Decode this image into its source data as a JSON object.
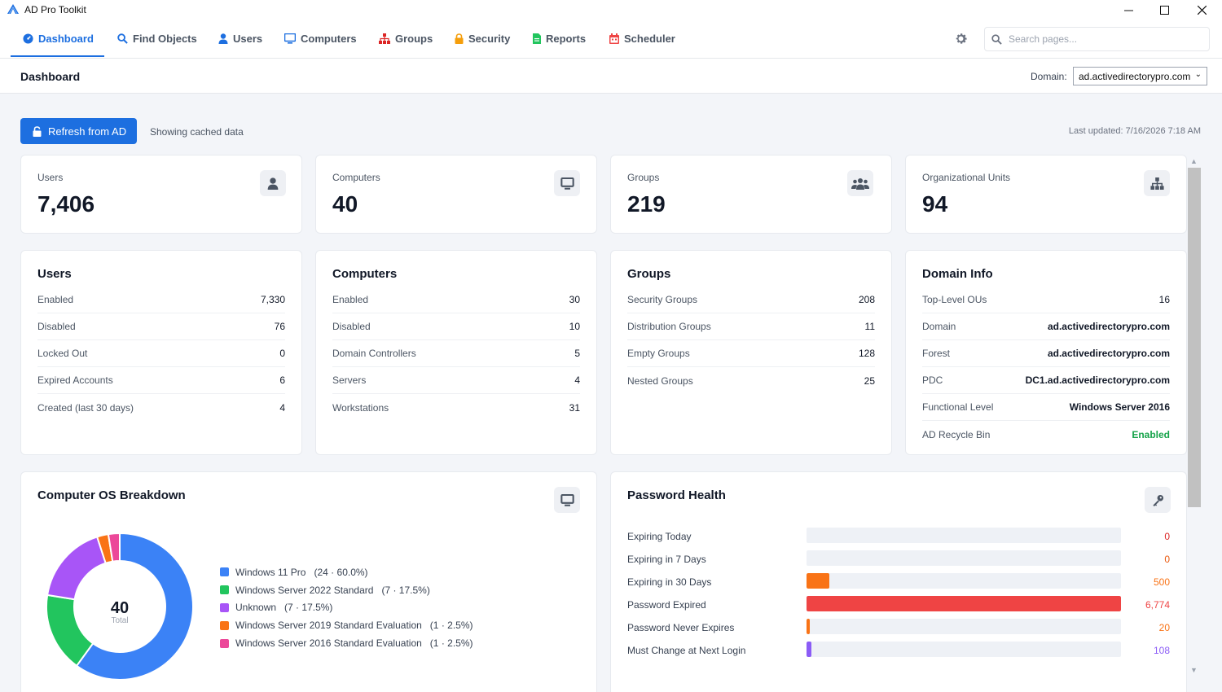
{
  "app": {
    "title": "AD Pro Toolkit"
  },
  "window": {
    "minimize": "—",
    "maximize": "☐",
    "close": "✕"
  },
  "nav": {
    "tabs": [
      {
        "label": "Dashboard",
        "icon": "dashboard-icon"
      },
      {
        "label": "Find Objects",
        "icon": "search-icon"
      },
      {
        "label": "Users",
        "icon": "user-icon"
      },
      {
        "label": "Computers",
        "icon": "monitor-icon"
      },
      {
        "label": "Groups",
        "icon": "sitemap-icon"
      },
      {
        "label": "Security",
        "icon": "lock-icon"
      },
      {
        "label": "Reports",
        "icon": "file-icon"
      },
      {
        "label": "Scheduler",
        "icon": "calendar-icon"
      }
    ],
    "search_placeholder": "Search pages..."
  },
  "header": {
    "title": "Dashboard",
    "domain_label": "Domain:",
    "domain_value": "ad.activedirectorypro.com"
  },
  "toolbar": {
    "refresh_label": "Refresh from AD",
    "cached_text": "Showing cached data",
    "last_updated": "Last updated: 7/16/2026 7:18 AM"
  },
  "stats": [
    {
      "label": "Users",
      "value": "7,406",
      "icon": "user-icon"
    },
    {
      "label": "Computers",
      "value": "40",
      "icon": "monitor-icon"
    },
    {
      "label": "Groups",
      "value": "219",
      "icon": "users-group-icon"
    },
    {
      "label": "Organizational Units",
      "value": "94",
      "icon": "sitemap-icon"
    }
  ],
  "details": {
    "users": {
      "title": "Users",
      "rows": [
        {
          "k": "Enabled",
          "v": "7,330"
        },
        {
          "k": "Disabled",
          "v": "76"
        },
        {
          "k": "Locked Out",
          "v": "0"
        },
        {
          "k": "Expired Accounts",
          "v": "6"
        },
        {
          "k": "Created (last 30 days)",
          "v": "4"
        }
      ]
    },
    "computers": {
      "title": "Computers",
      "rows": [
        {
          "k": "Enabled",
          "v": "30"
        },
        {
          "k": "Disabled",
          "v": "10"
        },
        {
          "k": "Domain Controllers",
          "v": "5"
        },
        {
          "k": "Servers",
          "v": "4"
        },
        {
          "k": "Workstations",
          "v": "31"
        }
      ]
    },
    "groups": {
      "title": "Groups",
      "rows": [
        {
          "k": "Security Groups",
          "v": "208"
        },
        {
          "k": "Distribution Groups",
          "v": "11"
        },
        {
          "k": "Empty Groups",
          "v": "128"
        },
        {
          "k": "Nested Groups",
          "v": "25"
        }
      ]
    },
    "domain_info": {
      "title": "Domain Info",
      "rows": [
        {
          "k": "Top-Level OUs",
          "v": "16"
        },
        {
          "k": "Domain",
          "v": "ad.activedirectorypro.com"
        },
        {
          "k": "Forest",
          "v": "ad.activedirectorypro.com"
        },
        {
          "k": "PDC",
          "v": "DC1.ad.activedirectorypro.com"
        },
        {
          "k": "Functional Level",
          "v": "Windows Server 2016"
        },
        {
          "k": "AD Recycle Bin",
          "v": "Enabled"
        }
      ]
    }
  },
  "os_breakdown": {
    "title": "Computer OS Breakdown",
    "total": "40",
    "total_label": "Total",
    "items": [
      {
        "name": "Windows 11 Pro",
        "count": 24,
        "pct": "60.0%",
        "color": "#3b82f6"
      },
      {
        "name": "Windows Server 2022 Standard",
        "count": 7,
        "pct": "17.5%",
        "color": "#22c55e"
      },
      {
        "name": "Unknown",
        "count": 7,
        "pct": "17.5%",
        "color": "#a855f7"
      },
      {
        "name": "Windows Server 2019 Standard Evaluation",
        "count": 1,
        "pct": "2.5%",
        "color": "#f97316"
      },
      {
        "name": "Windows Server 2016 Standard Evaluation",
        "count": 1,
        "pct": "2.5%",
        "color": "#ec4899"
      }
    ]
  },
  "password_health": {
    "title": "Password Health",
    "max": 6774,
    "rows": [
      {
        "label": "Expiring Today",
        "value": 0,
        "display": "0",
        "color": "#dc2626"
      },
      {
        "label": "Expiring in 7 Days",
        "value": 0,
        "display": "0",
        "color": "#ea580c"
      },
      {
        "label": "Expiring in 30 Days",
        "value": 500,
        "display": "500",
        "color": "#f97316"
      },
      {
        "label": "Password Expired",
        "value": 6774,
        "display": "6,774",
        "color": "#ef4444"
      },
      {
        "label": "Password Never Expires",
        "value": 20,
        "display": "20",
        "color": "#f97316"
      },
      {
        "label": "Must Change at Next Login",
        "value": 108,
        "display": "108",
        "color": "#8b5cf6"
      }
    ]
  }
}
